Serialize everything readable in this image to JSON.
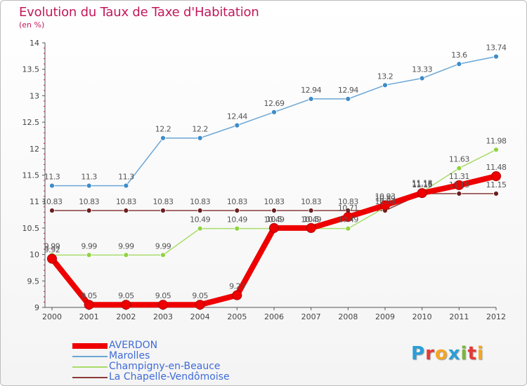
{
  "header": {
    "title": "Evolution du Taux de Taxe d'Habitation",
    "unit": "(en %)"
  },
  "brand": {
    "text": "Proxiti",
    "letter_colors": [
      "#2a9fd8",
      "#e53935",
      "#f5a623",
      "#2a9fd8",
      "#7cb342",
      "#e53935",
      "#f5a623"
    ]
  },
  "chart_data": {
    "type": "line",
    "title": "Evolution du Taux de Taxe d'Habitation",
    "ylabel": "(en %)",
    "xlabel": "",
    "ylim": [
      9,
      14
    ],
    "yticks": [
      "9",
      "9.5",
      "10",
      "10.5",
      "11",
      "11.5",
      "12",
      "12.5",
      "13",
      "13.5",
      "14"
    ],
    "ytick_values": [
      9,
      9.5,
      10,
      10.5,
      11,
      11.5,
      12,
      12.5,
      13,
      13.5,
      14
    ],
    "x": [
      "2000",
      "2001",
      "2002",
      "2003",
      "2004",
      "2005",
      "2006",
      "2007",
      "2008",
      "2009",
      "2010",
      "2011",
      "2012"
    ],
    "grid": false,
    "legend_position": "bottom-left",
    "series": [
      {
        "name": "AVERDON",
        "color": "#ee0000",
        "values": [
          9.92,
          9.05,
          9.05,
          9.05,
          9.05,
          9.23,
          10.5,
          10.5,
          10.71,
          10.93,
          11.16,
          11.31,
          11.48
        ],
        "labels": [
          "9.92",
          "9.05",
          "9.05",
          "9.05",
          "9.05",
          "9.23",
          "10.5",
          "10.5",
          "10.71",
          "10.93",
          "11.16",
          "11.31",
          "11.48"
        ]
      },
      {
        "name": "Marolles",
        "color": "#6aa6d6",
        "point_color": "#3d8cc9",
        "values": [
          11.3,
          11.3,
          11.3,
          12.2,
          12.2,
          12.44,
          12.69,
          12.94,
          12.94,
          13.2,
          13.33,
          13.6,
          13.74
        ],
        "labels": [
          "11.3",
          "11.3",
          "11.3",
          "12.2",
          "12.2",
          "12.44",
          "12.69",
          "12.94",
          "12.94",
          "13.2",
          "13.33",
          "13.6",
          "13.74"
        ]
      },
      {
        "name": "Champigny-en-Beauce",
        "color": "#a8dc6a",
        "point_color": "#8fd33f",
        "values": [
          9.99,
          9.99,
          9.99,
          9.99,
          10.49,
          10.49,
          10.49,
          10.49,
          10.49,
          10.89,
          11.18,
          11.63,
          11.98
        ],
        "labels": [
          "9.99",
          "9.99",
          "9.99",
          "9.99",
          "10.49",
          "10.49",
          "10.49",
          "10.49",
          "10.49",
          "10.89",
          "11.18",
          "11.63",
          "11.98"
        ]
      },
      {
        "name": "La Chapelle-Vendômoise",
        "color": "#8c3a3a",
        "point_color": "#6b1f1f",
        "values": [
          10.83,
          10.83,
          10.83,
          10.83,
          10.83,
          10.83,
          10.83,
          10.83,
          10.83,
          10.83,
          11.15,
          11.15,
          11.15
        ],
        "labels": [
          "10.83",
          "10.83",
          "10.83",
          "10.83",
          "10.83",
          "10.83",
          "10.83",
          "10.83",
          "10.83",
          "10.83",
          "11.15",
          "11.15",
          "11.15"
        ]
      }
    ]
  }
}
